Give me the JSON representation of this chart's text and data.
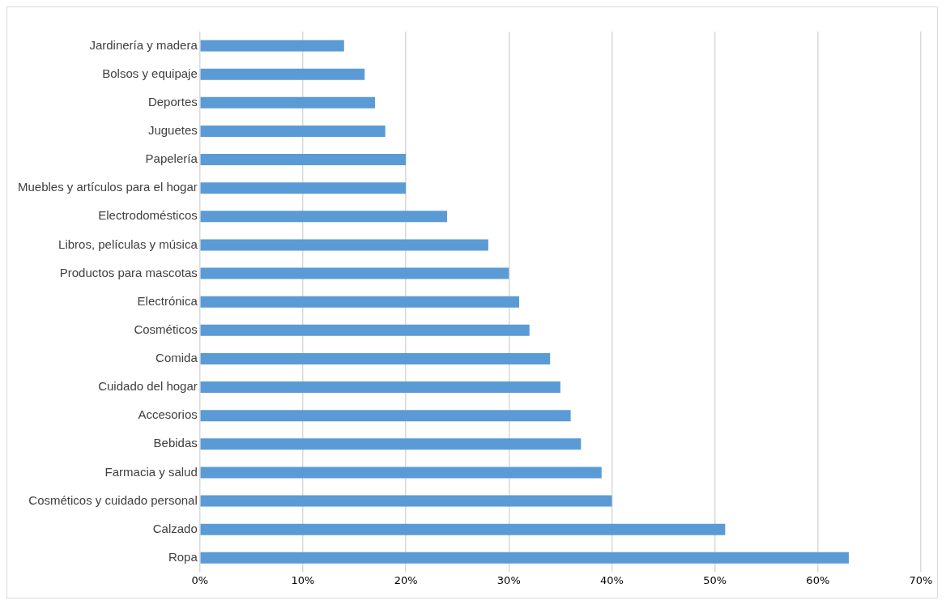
{
  "chart_data": {
    "type": "bar",
    "orientation": "horizontal",
    "categories": [
      "Jardinería y madera",
      "Bolsos y equipaje",
      "Deportes",
      "Juguetes",
      "Papelería",
      "Muebles y artículos para el hogar",
      "Electrodomésticos",
      "Libros, películas y música",
      "Productos para mascotas",
      "Electrónica",
      "Cosméticos",
      "Comida",
      "Cuidado del hogar",
      "Accesorios",
      "Bebidas",
      "Farmacia y salud",
      "Cosméticos y cuidado personal",
      "Calzado",
      "Ropa"
    ],
    "values": [
      14,
      16,
      17,
      18,
      20,
      20,
      24,
      28,
      30,
      31,
      32,
      34,
      35,
      36,
      37,
      39,
      40,
      51,
      63
    ],
    "color": "#5b9bd5",
    "xlim": [
      0,
      70
    ],
    "xticks": [
      {
        "value": 0,
        "label": "0%"
      },
      {
        "value": 10,
        "label": "10%"
      },
      {
        "value": 20,
        "label": "20%"
      },
      {
        "value": 30,
        "label": "30%"
      },
      {
        "value": 40,
        "label": "40%"
      },
      {
        "value": 50,
        "label": "50%"
      },
      {
        "value": 60,
        "label": "60%"
      },
      {
        "value": 70,
        "label": "70%"
      }
    ],
    "grid": "x",
    "legend": false
  }
}
